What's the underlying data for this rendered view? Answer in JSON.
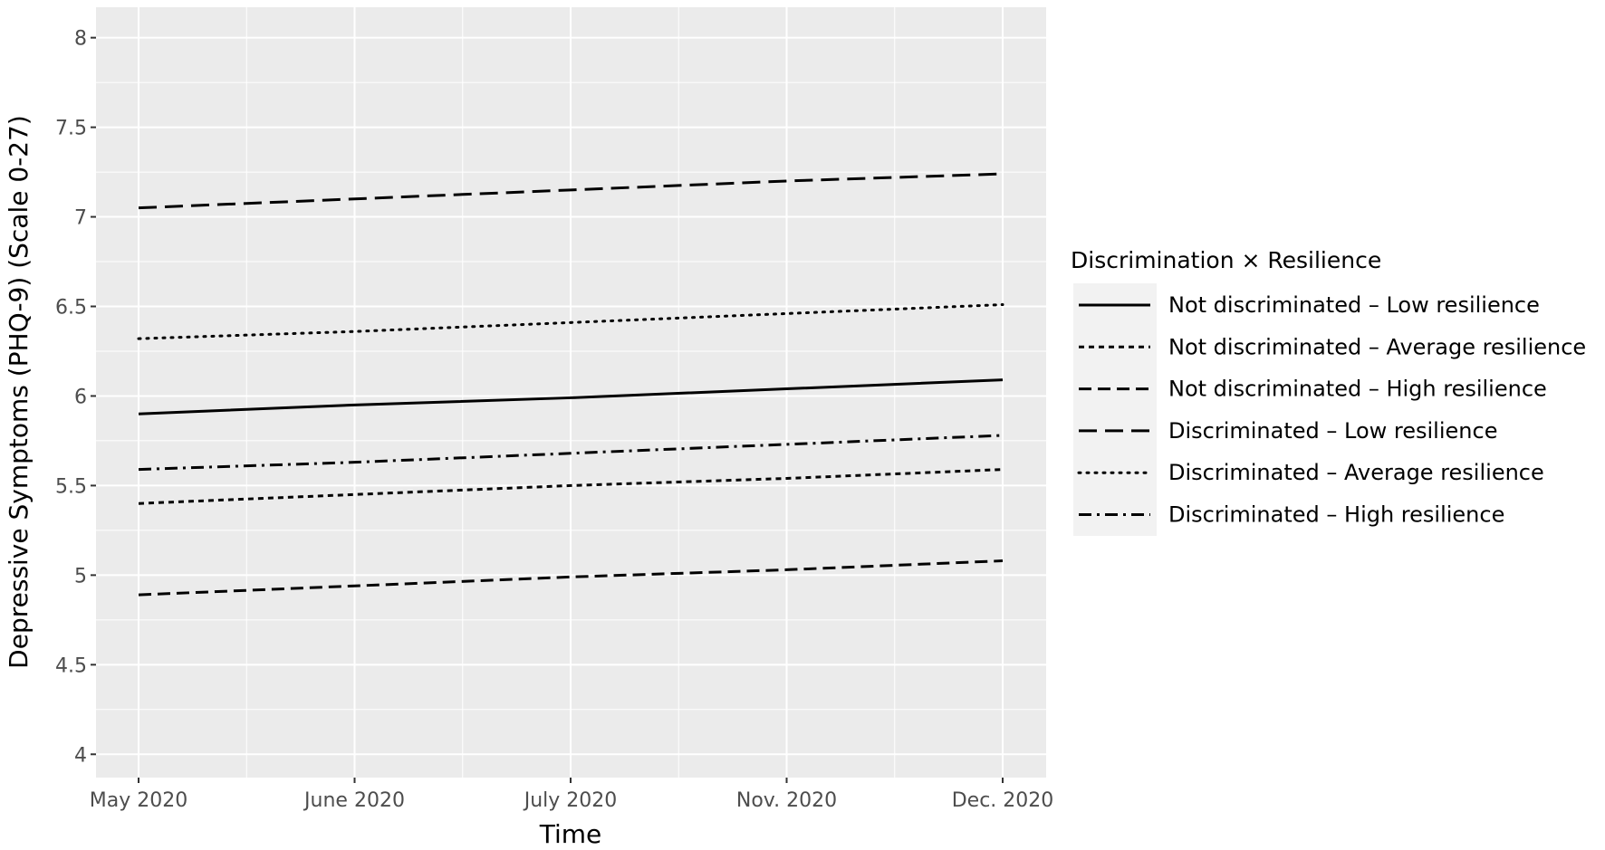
{
  "chart_data": {
    "type": "line",
    "title": "",
    "xlabel": "Time",
    "ylabel": "Depressive Symptoms (PHQ-9) (Scale 0-27)",
    "categories": [
      "May 2020",
      "June 2020",
      "July 2020",
      "Nov. 2020",
      "Dec. 2020"
    ],
    "ylim": [
      3.87,
      8.17
    ],
    "yticks": [
      4,
      4.5,
      5,
      5.5,
      6,
      6.5,
      7,
      7.5,
      8
    ],
    "grid": true,
    "legend": {
      "title": "Discrimination × Resilience",
      "position": "right"
    },
    "series": [
      {
        "name": "Not discriminated – Low resilience",
        "style": "solid",
        "values": [
          5.9,
          5.95,
          5.99,
          6.04,
          6.09
        ]
      },
      {
        "name": "Not discriminated – Average resilience",
        "style": "short-dash",
        "values": [
          5.4,
          5.45,
          5.5,
          5.54,
          5.59
        ]
      },
      {
        "name": "Not discriminated – High resilience",
        "style": "dashed",
        "values": [
          4.89,
          4.94,
          4.99,
          5.03,
          5.08
        ]
      },
      {
        "name": "Discriminated – Low resilience",
        "style": "long-dash",
        "values": [
          7.05,
          7.1,
          7.15,
          7.2,
          7.24
        ]
      },
      {
        "name": "Discriminated – Average resilience",
        "style": "dotted",
        "values": [
          6.32,
          6.36,
          6.41,
          6.46,
          6.51
        ]
      },
      {
        "name": "Discriminated – High resilience",
        "style": "dash-dot",
        "values": [
          5.59,
          5.63,
          5.68,
          5.73,
          5.78
        ]
      }
    ],
    "colors": {
      "panel_background": "#ebebeb",
      "grid": "#ffffff",
      "line": "#000000",
      "legend_key_background": "#f2f2f2"
    }
  }
}
